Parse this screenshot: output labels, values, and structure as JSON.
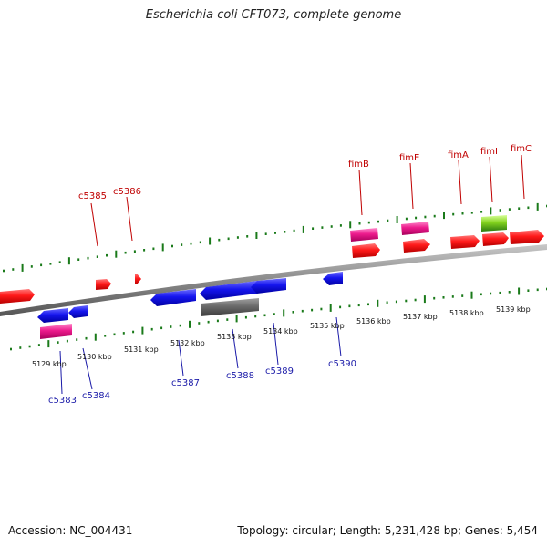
{
  "title": "Escherichia coli CFT073, complete genome",
  "footer": {
    "accession": "Accession: NC_004431",
    "summary": "Topology: circular; Length: 5,231,428 bp; Genes: 5,454"
  },
  "colors": {
    "forward_label": "#c00000",
    "reverse_label": "#1a1aa8",
    "forward_cds": "#ff0000",
    "reverse_cds": "#1010ee",
    "gene": "#e8168a",
    "rna": "#6a6a6a",
    "trna": "#7fd320",
    "tick": "#1a7a1a",
    "backbone": "#8c8c8c"
  },
  "kbp_labels": [
    "5129 kbp",
    "5130 kbp",
    "5131 kbp",
    "5132 kbp",
    "5133 kbp",
    "5134 kbp",
    "5135 kbp",
    "5136 kbp",
    "5137 kbp",
    "5138 kbp",
    "5139 kbp"
  ],
  "gene_labels": {
    "forward": [
      "c5385",
      "c5386",
      "fimB",
      "fimE",
      "fimA",
      "fimI",
      "fimC"
    ],
    "reverse": [
      "c5383",
      "c5384",
      "c5387",
      "c5388",
      "c5389",
      "c5390"
    ]
  }
}
